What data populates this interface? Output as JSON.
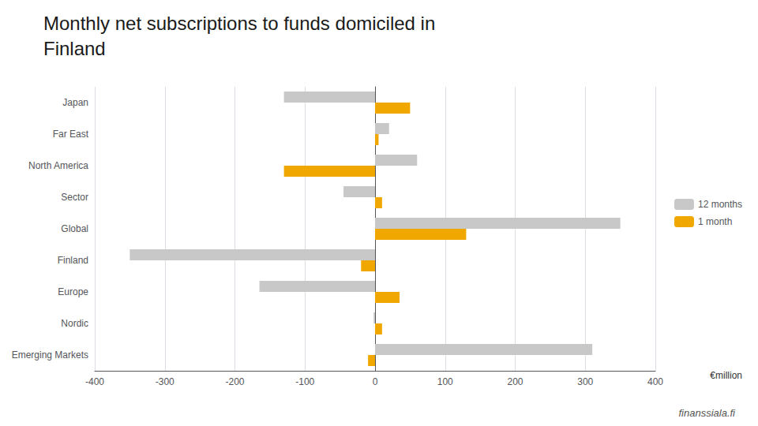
{
  "chart_data": {
    "type": "bar",
    "orientation": "horizontal",
    "title": "Monthly net subscriptions to funds domiciled in",
    "subtitle": "Finland",
    "categories": [
      "Emerging Markets",
      "Nordic",
      "Europe",
      "Finland",
      "Global",
      "Sector",
      "North America",
      "Far East",
      "Japan"
    ],
    "series": [
      {
        "name": "12 months",
        "color": "#c8c8c8",
        "values": [
          310,
          -2,
          -165,
          -350,
          350,
          -45,
          60,
          20,
          -130
        ]
      },
      {
        "name": "1 month",
        "color": "#f0a800",
        "values": [
          -10,
          10,
          35,
          -20,
          130,
          10,
          -130,
          5,
          50
        ]
      }
    ],
    "xlim": [
      -400,
      400
    ],
    "xticks": [
      -400,
      -300,
      -200,
      -100,
      0,
      100,
      200,
      300,
      400
    ],
    "grid": true,
    "legend": "right",
    "annotations": [
      "€million",
      "finanssiala.fi"
    ]
  }
}
